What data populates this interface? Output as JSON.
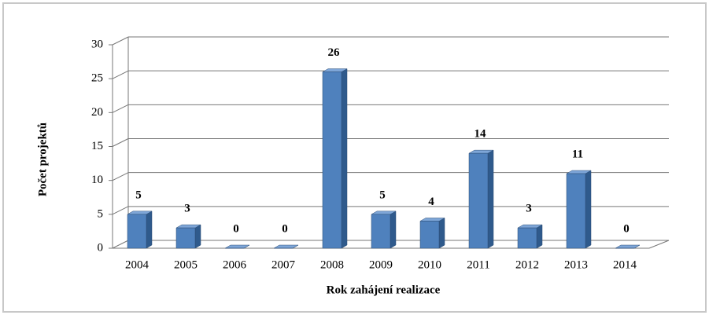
{
  "chart_data": {
    "type": "bar3d",
    "categories": [
      "2004",
      "2005",
      "2006",
      "2007",
      "2008",
      "2009",
      "2010",
      "2011",
      "2012",
      "2013",
      "2014"
    ],
    "values": [
      5,
      3,
      0,
      0,
      26,
      5,
      4,
      14,
      3,
      11,
      0
    ],
    "color": "#4f81bd",
    "ylim": [
      0,
      30
    ],
    "yticks": [
      0,
      5,
      10,
      15,
      20,
      25,
      30
    ],
    "grid": true,
    "xlabel": "Rok zahájení realizace",
    "ylabel": "Počet projektů"
  }
}
